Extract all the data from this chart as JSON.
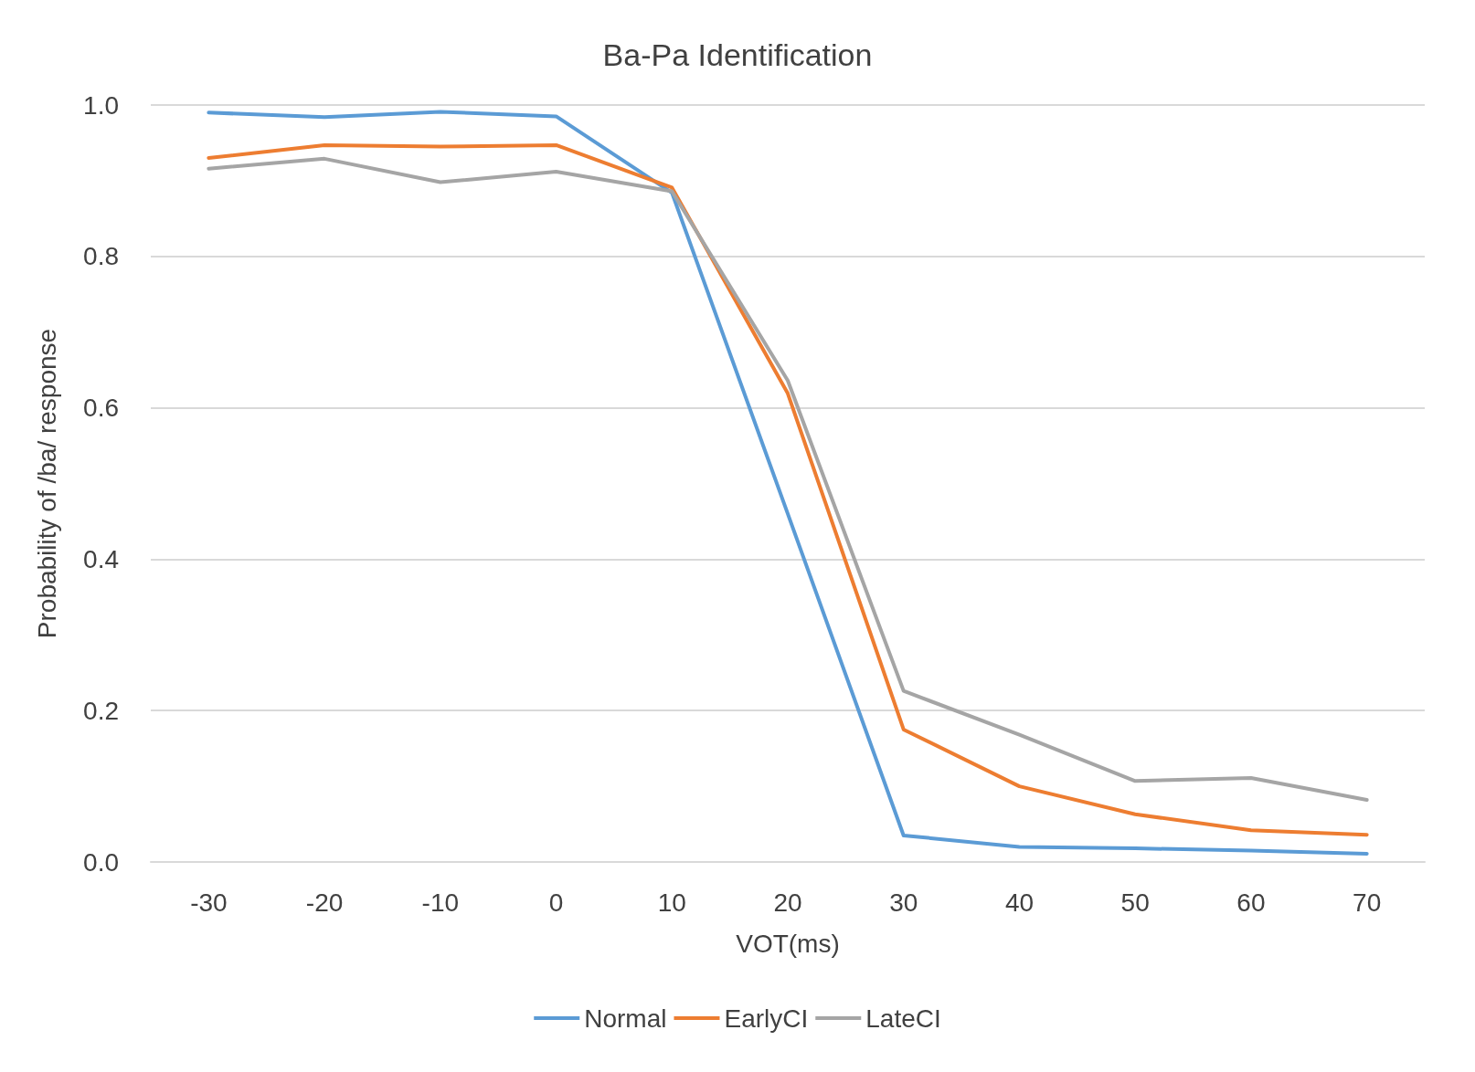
{
  "chart_data": {
    "type": "line",
    "title": "Ba-Pa Identification",
    "xlabel": "VOT(ms)",
    "ylabel": "Probability of /ba/ response",
    "categories": [
      "-30",
      "-20",
      "-10",
      "0",
      "10",
      "20",
      "30",
      "40",
      "50",
      "60",
      "70"
    ],
    "series": [
      {
        "name": "Normal",
        "color": "#5b9bd5",
        "values": [
          0.99,
          0.984,
          0.991,
          0.985,
          0.884,
          0.46,
          0.035,
          0.02,
          0.018,
          0.015,
          0.011
        ]
      },
      {
        "name": "EarlyCI",
        "color": "#ed7d31",
        "values": [
          0.93,
          0.947,
          0.945,
          0.947,
          0.891,
          0.619,
          0.175,
          0.1,
          0.063,
          0.042,
          0.036
        ]
      },
      {
        "name": "LateCI",
        "color": "#a5a5a5",
        "values": [
          0.916,
          0.929,
          0.898,
          0.912,
          0.886,
          0.636,
          0.226,
          0.168,
          0.107,
          0.111,
          0.082
        ]
      }
    ],
    "ylim": [
      0,
      1
    ],
    "yticks": [
      {
        "value": 0,
        "label": "0.0"
      },
      {
        "value": 0.2,
        "label": "0.2"
      },
      {
        "value": 0.4,
        "label": "0.4"
      },
      {
        "value": 0.6,
        "label": "0.6"
      },
      {
        "value": 0.8,
        "label": "0.8"
      },
      {
        "value": 1,
        "label": "1.0"
      }
    ],
    "grid": "y",
    "legend": "bottom",
    "marker": "none",
    "line_style": "solid"
  }
}
